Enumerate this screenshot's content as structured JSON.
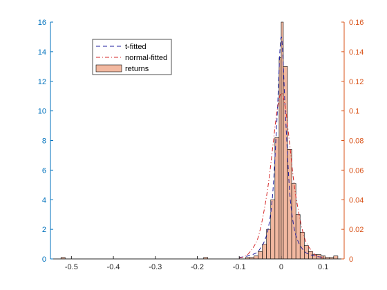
{
  "chart_data": {
    "type": "bar",
    "title": "",
    "xlabel": "",
    "ylabel": "",
    "xlim": [
      -0.55,
      0.15
    ],
    "ylim_left": [
      0,
      16
    ],
    "ylim_right": [
      0,
      0.16
    ],
    "xticks": [
      "-0.5",
      "-0.4",
      "-0.3",
      "-0.2",
      "-0.1",
      "0",
      "0.1"
    ],
    "xtick_values": [
      -0.5,
      -0.4,
      -0.3,
      -0.2,
      -0.1,
      0,
      0.1
    ],
    "yticks_left": [
      "0",
      "2",
      "4",
      "6",
      "8",
      "10",
      "12",
      "14",
      "16"
    ],
    "yticks_right": [
      "0",
      "0.02",
      "0.04",
      "0.06",
      "0.08",
      "0.1",
      "0.12",
      "0.14",
      "0.16"
    ],
    "grid": false,
    "legend_position": "top-left",
    "legend": [
      "t-fitted",
      "normal-fitted",
      "returns"
    ],
    "colors": {
      "bar_fill": "#F2B8A0",
      "bar_edge": "#000000",
      "t_line": "#1F1F9F",
      "normal_line": "#D62728",
      "left_axis": "#0072BD",
      "right_axis": "#D95319"
    },
    "histogram": {
      "name": "returns",
      "bins": [
        {
          "x0": -0.525,
          "x1": -0.515,
          "v": 0.1
        },
        {
          "x0": -0.185,
          "x1": -0.175,
          "v": 0.1
        },
        {
          "x0": -0.085,
          "x1": -0.075,
          "v": 0.1
        },
        {
          "x0": -0.075,
          "x1": -0.065,
          "v": 0.1
        },
        {
          "x0": -0.065,
          "x1": -0.055,
          "v": 0.2
        },
        {
          "x0": -0.055,
          "x1": -0.045,
          "v": 0.5
        },
        {
          "x0": -0.045,
          "x1": -0.035,
          "v": 1.0
        },
        {
          "x0": -0.035,
          "x1": -0.025,
          "v": 2.0
        },
        {
          "x0": -0.025,
          "x1": -0.015,
          "v": 4.0
        },
        {
          "x0": -0.015,
          "x1": -0.005,
          "v": 8.2
        },
        {
          "x0": -0.005,
          "x1": 0.0,
          "v": 13.6
        },
        {
          "x0": 0.0,
          "x1": 0.005,
          "v": 16.0
        },
        {
          "x0": 0.005,
          "x1": 0.015,
          "v": 13.0
        },
        {
          "x0": 0.015,
          "x1": 0.025,
          "v": 7.4
        },
        {
          "x0": 0.025,
          "x1": 0.035,
          "v": 5.1
        },
        {
          "x0": 0.035,
          "x1": 0.045,
          "v": 3.0
        },
        {
          "x0": 0.045,
          "x1": 0.055,
          "v": 1.8
        },
        {
          "x0": 0.055,
          "x1": 0.065,
          "v": 0.9
        },
        {
          "x0": 0.065,
          "x1": 0.075,
          "v": 0.5
        },
        {
          "x0": 0.075,
          "x1": 0.085,
          "v": 0.3
        },
        {
          "x0": 0.085,
          "x1": 0.095,
          "v": 0.3
        },
        {
          "x0": 0.095,
          "x1": 0.105,
          "v": 0.2
        },
        {
          "x0": 0.105,
          "x1": 0.115,
          "v": 0.1
        },
        {
          "x0": 0.115,
          "x1": 0.125,
          "v": 0.1
        },
        {
          "x0": 0.125,
          "x1": 0.135,
          "v": 0.2
        }
      ]
    },
    "series": [
      {
        "name": "t-fitted",
        "axis": "left",
        "x": [
          -0.1,
          -0.08,
          -0.06,
          -0.05,
          -0.04,
          -0.03,
          -0.02,
          -0.01,
          0.0,
          0.01,
          0.02,
          0.03,
          0.04,
          0.05,
          0.06,
          0.08,
          0.1
        ],
        "y": [
          0.1,
          0.2,
          0.4,
          0.7,
          1.2,
          2.2,
          4.5,
          9.5,
          15.0,
          9.8,
          4.6,
          2.2,
          1.2,
          0.7,
          0.4,
          0.2,
          0.1
        ]
      },
      {
        "name": "normal-fitted",
        "axis": "left",
        "x": [
          -0.1,
          -0.08,
          -0.06,
          -0.05,
          -0.04,
          -0.03,
          -0.02,
          -0.01,
          0.0,
          0.01,
          0.02,
          0.03,
          0.04,
          0.05,
          0.06,
          0.08,
          0.1
        ],
        "y": [
          0.05,
          0.3,
          1.1,
          2.0,
          3.4,
          5.2,
          7.6,
          10.0,
          11.2,
          10.2,
          7.8,
          5.2,
          3.4,
          2.0,
          1.1,
          0.3,
          0.05
        ]
      }
    ]
  }
}
